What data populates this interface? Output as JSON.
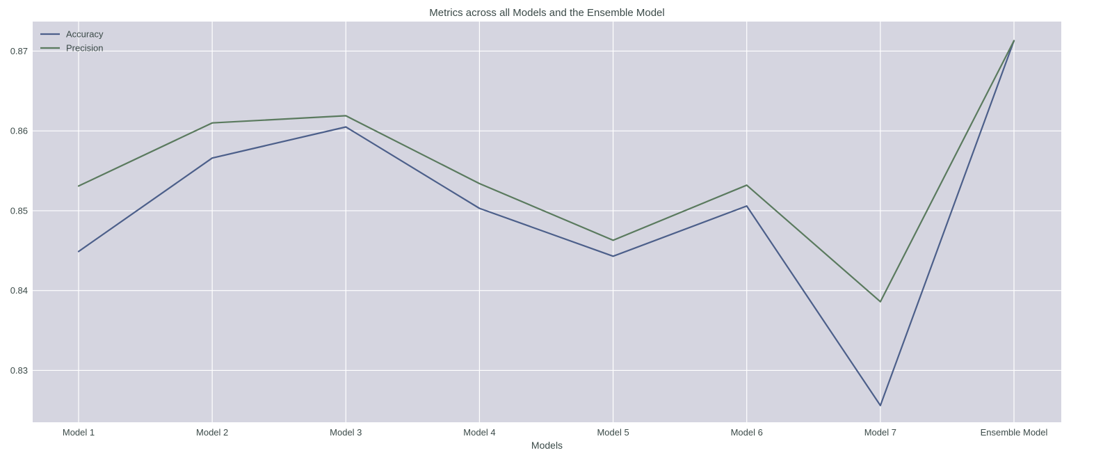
{
  "chart_data": {
    "type": "line",
    "title": "Metrics across all Models and the Ensemble Model",
    "xlabel": "Models",
    "ylabel": "",
    "categories": [
      "Model 1",
      "Model 2",
      "Model 3",
      "Model 4",
      "Model 5",
      "Model 6",
      "Model 7",
      "Ensemble Model"
    ],
    "series": [
      {
        "name": "Accuracy",
        "color": "#4c5f8a",
        "values": [
          0.8449,
          0.8566,
          0.8605,
          0.8503,
          0.8443,
          0.8506,
          0.8256,
          0.8713
        ]
      },
      {
        "name": "Precision",
        "color": "#5a7a5e",
        "values": [
          0.8531,
          0.861,
          0.8619,
          0.8534,
          0.8463,
          0.8532,
          0.8386,
          0.8713
        ]
      }
    ],
    "ylim": [
      0.8235,
      0.8737
    ],
    "yticks": [
      0.83,
      0.84,
      0.85,
      0.86,
      0.87
    ],
    "ytick_labels": [
      "0.83",
      "0.84",
      "0.85",
      "0.86",
      "0.87"
    ],
    "grid": true,
    "legend_position": "top-left",
    "background_color": "#d5d5e0",
    "grid_color": "#ffffff"
  }
}
